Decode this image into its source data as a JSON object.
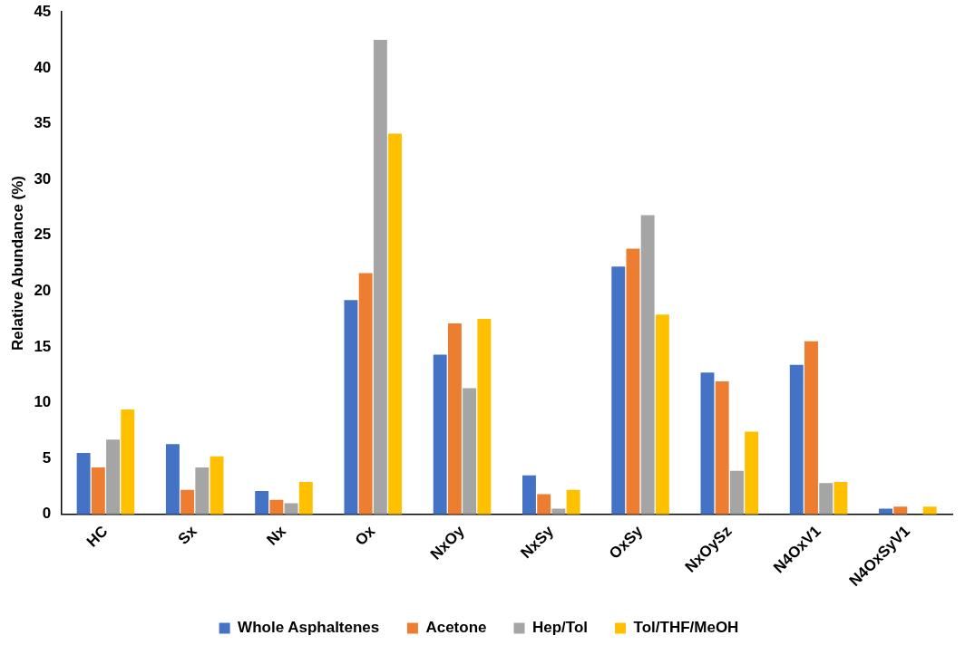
{
  "chart_data": {
    "type": "bar",
    "ylabel": "Relative Abundance (%)",
    "categories": [
      "HC",
      "Sx",
      "Nx",
      "Ox",
      "NxOy",
      "NxSy",
      "OxSy",
      "NxOySz",
      "N4OxV1",
      "N4OxSyV1"
    ],
    "series": [
      {
        "name": "Whole Asphaltenes",
        "color": "#4472c4",
        "values": [
          5.5,
          6.3,
          2.1,
          19.2,
          14.3,
          3.5,
          22.2,
          12.7,
          13.4,
          0.5
        ]
      },
      {
        "name": "Acetone",
        "color": "#ed7d31",
        "values": [
          4.2,
          2.2,
          1.3,
          21.6,
          17.1,
          1.8,
          23.8,
          11.9,
          15.5,
          0.7
        ]
      },
      {
        "name": "Hep/Tol",
        "color": "#a5a5a5",
        "values": [
          6.7,
          4.2,
          1.0,
          42.5,
          11.3,
          0.5,
          26.8,
          3.9,
          2.8,
          null
        ]
      },
      {
        "name": "Tol/THF/MeOH",
        "color": "#ffc000",
        "values": [
          9.4,
          5.2,
          2.9,
          34.1,
          17.5,
          2.2,
          17.9,
          7.4,
          2.9,
          0.7
        ]
      }
    ],
    "ylim": [
      0,
      45
    ],
    "yticks": [
      0,
      5,
      10,
      15,
      20,
      25,
      30,
      35,
      40,
      45
    ],
    "grid": false,
    "legend": "bottom"
  }
}
